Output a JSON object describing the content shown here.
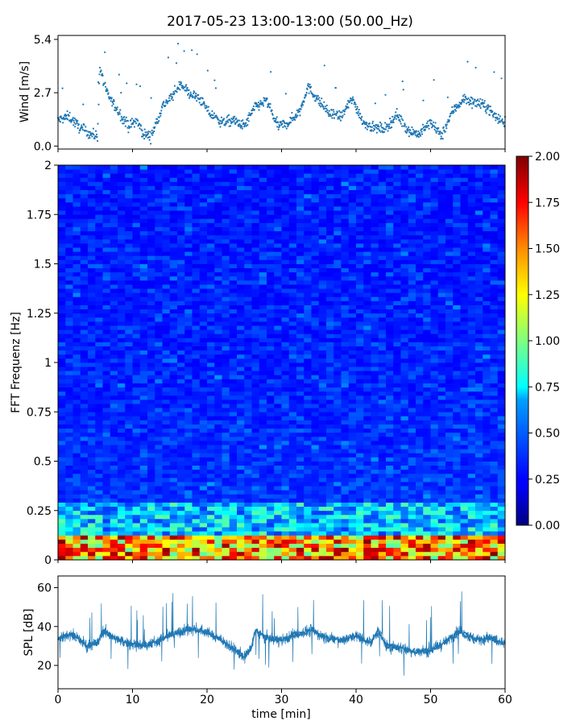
{
  "title": "2017-05-23 13:00-13:00 (50.00_Hz)",
  "chart_data": [
    {
      "type": "scatter",
      "ylabel": "Wind [m/s]",
      "xlim": [
        0,
        60
      ],
      "ylim": [
        -0.15,
        5.6
      ],
      "yticks": [
        "0.0",
        "2.7",
        "5.4"
      ],
      "marker_color": "#1f77b4",
      "segments": [
        {
          "x": [
            0,
            1.5,
            3,
            4.5,
            5.3,
            5.6,
            6.5,
            8,
            9.5,
            10.5,
            11.5,
            12.5,
            14,
            15.5,
            16.5,
            17.5,
            19,
            20.5,
            22,
            23.5,
            25,
            26.5,
            28,
            29.5,
            31,
            32.5,
            33.5,
            35,
            36.5,
            38,
            39.5,
            41,
            42.5,
            44,
            45.5,
            47,
            48.5,
            50,
            51.5,
            53,
            54.5,
            56,
            57.5,
            59,
            60
          ],
          "y": [
            1.3,
            1.5,
            0.9,
            0.6,
            0.5,
            4.0,
            2.7,
            1.8,
            1.0,
            1.3,
            0.6,
            0.5,
            2.0,
            2.6,
            3.2,
            2.7,
            2.4,
            1.6,
            1.2,
            1.3,
            1.0,
            2.0,
            2.3,
            1.0,
            1.2,
            1.8,
            3.0,
            2.3,
            1.6,
            1.5,
            2.4,
            1.2,
            0.9,
            0.9,
            1.6,
            0.8,
            0.6,
            1.2,
            0.5,
            1.8,
            2.4,
            2.2,
            2.0,
            1.4,
            1.2
          ]
        }
      ]
    },
    {
      "type": "heatmap",
      "ylabel": "FFT Frequenz [Hz]",
      "xlim": [
        0,
        60
      ],
      "ylim": [
        0,
        2
      ],
      "yticks": [
        "0",
        "0.25",
        "0.5",
        "0.75",
        "1",
        "1.25",
        "1.5",
        "1.75",
        "2"
      ],
      "colormap": "jet",
      "colorbar_range": [
        0,
        2.0
      ],
      "colorbar_ticks": [
        "0.00",
        "0.25",
        "0.50",
        "0.75",
        "1.00",
        "1.25",
        "1.50",
        "1.75",
        "2.00"
      ]
    },
    {
      "type": "line",
      "ylabel": "SPL [dB]",
      "xlabel": "time [min]",
      "xlim": [
        0,
        60
      ],
      "ylim": [
        8,
        66
      ],
      "xticks": [
        "0",
        "10",
        "20",
        "30",
        "40",
        "50",
        "60"
      ],
      "yticks": [
        "20",
        "40",
        "60"
      ],
      "line_color": "#1f77b4",
      "x": [
        0,
        2,
        4,
        5.5,
        6,
        8,
        10,
        12,
        14,
        16,
        17,
        18,
        20,
        22,
        24,
        25,
        26,
        26.5,
        28,
        30,
        32,
        34,
        36,
        38,
        40,
        42,
        43,
        44,
        46,
        48,
        50,
        52,
        54,
        56,
        58,
        60
      ],
      "y": [
        34,
        36,
        30,
        32,
        38,
        33,
        31,
        30,
        34,
        37,
        38,
        39,
        37,
        33,
        27,
        24,
        30,
        38,
        34,
        33,
        36,
        38,
        34,
        33,
        35,
        32,
        38,
        30,
        29,
        27,
        28,
        32,
        38,
        33,
        34,
        31
      ]
    }
  ]
}
